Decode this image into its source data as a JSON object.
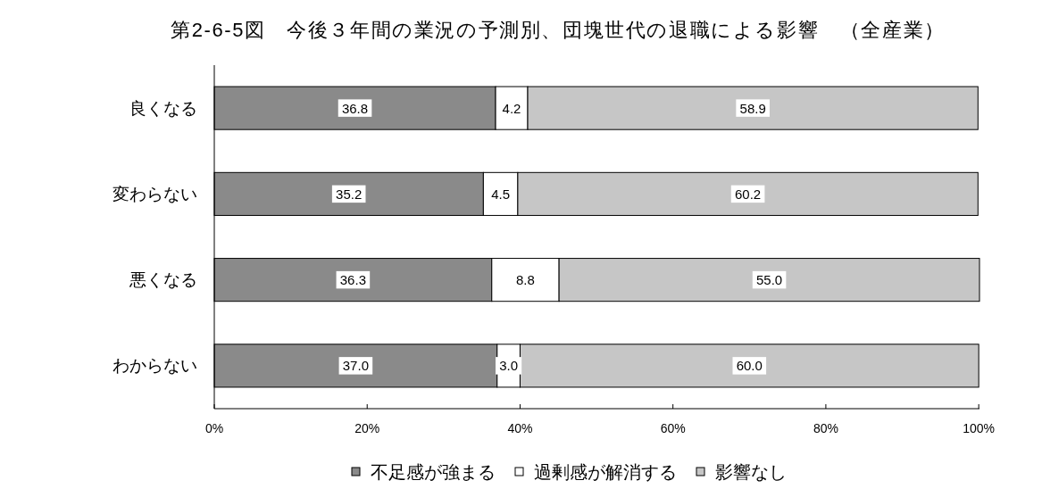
{
  "chart_data": {
    "type": "bar",
    "orientation": "horizontal",
    "stacked": true,
    "title": "第2-6-5図　今後３年間の業況の予測別、団塊世代の退職による影響　（全産業）",
    "categories": [
      "良くなる",
      "変わらない",
      "悪くなる",
      "わからない"
    ],
    "series": [
      {
        "name": "不足感が強まる",
        "color": "#8a8a8a",
        "values": [
          36.8,
          35.2,
          36.3,
          37.0
        ],
        "value_labels": [
          "36.8",
          "35.2",
          "36.3",
          "37.0"
        ]
      },
      {
        "name": "過剰感が解消する",
        "color": "#ffffff",
        "values": [
          4.2,
          4.5,
          8.8,
          3.0
        ],
        "value_labels": [
          "4.2",
          "4.5",
          "8.8",
          "3.0"
        ]
      },
      {
        "name": "影響なし",
        "color": "#c6c6c6",
        "values": [
          58.9,
          60.2,
          55.0,
          60.0
        ],
        "value_labels": [
          "58.9",
          "60.2",
          "55.0",
          "60.0"
        ]
      }
    ],
    "xlim": [
      0,
      100.1
    ],
    "xticks": [
      {
        "value": 0,
        "label": "0%"
      },
      {
        "value": 20,
        "label": "20%"
      },
      {
        "value": 40,
        "label": "40%"
      },
      {
        "value": 60,
        "label": "60%"
      },
      {
        "value": 80,
        "label": "80%"
      },
      {
        "value": 100,
        "label": "100%"
      }
    ],
    "legend": "bottom"
  }
}
